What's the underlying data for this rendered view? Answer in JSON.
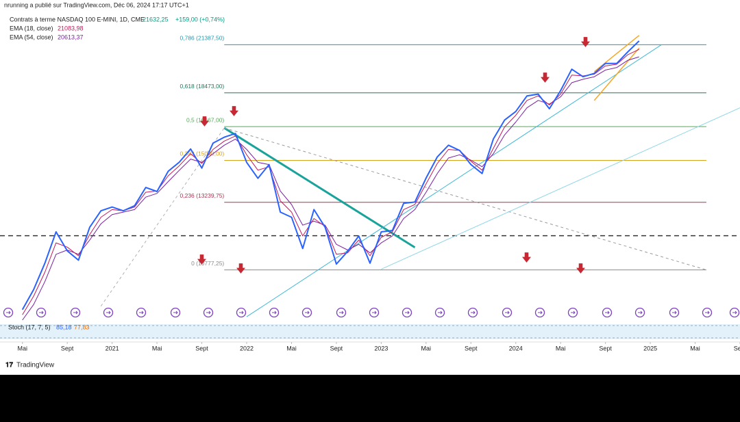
{
  "header": {
    "published": "nrunning a publié sur TradingView.com, Déc 06, 2024 17:17 UTC+1"
  },
  "footer": {
    "brand": "TradingView"
  },
  "chart_data": {
    "type": "line",
    "log_scale": true,
    "xlim": [
      "2020-03",
      "2025-09"
    ],
    "ylim": [
      9250,
      23800
    ],
    "xticks": [
      {
        "value": "2020-05",
        "label": "Mai"
      },
      {
        "value": "2020-09",
        "label": "Sept"
      },
      {
        "value": "2021-01",
        "label": "2021"
      },
      {
        "value": "2021-05",
        "label": "Mai"
      },
      {
        "value": "2021-09",
        "label": "Sept"
      },
      {
        "value": "2022-01",
        "label": "2022"
      },
      {
        "value": "2022-05",
        "label": "Mai"
      },
      {
        "value": "2022-09",
        "label": "Sept"
      },
      {
        "value": "2023-01",
        "label": "2023"
      },
      {
        "value": "2023-05",
        "label": "Mai"
      },
      {
        "value": "2023-09",
        "label": "Sept"
      },
      {
        "value": "2024-01",
        "label": "2024"
      },
      {
        "value": "2024-05",
        "label": "Mai"
      },
      {
        "value": "2024-09",
        "label": "Sept"
      },
      {
        "value": "2025-01",
        "label": "2025"
      },
      {
        "value": "2025-05",
        "label": "Mai"
      },
      {
        "value": "2025-09",
        "label": "Sept"
      }
    ],
    "x": [
      "2020-05",
      "2020-06",
      "2020-07",
      "2020-08",
      "2020-09",
      "2020-10",
      "2020-11",
      "2020-12",
      "2021-01",
      "2021-02",
      "2021-03",
      "2021-04",
      "2021-05",
      "2021-06",
      "2021-07",
      "2021-08",
      "2021-09",
      "2021-10",
      "2021-11",
      "2021-12",
      "2022-01",
      "2022-02",
      "2022-03",
      "2022-04",
      "2022-05",
      "2022-06",
      "2022-07",
      "2022-08",
      "2022-09",
      "2022-10",
      "2022-11",
      "2022-12",
      "2023-01",
      "2023-02",
      "2023-03",
      "2023-04",
      "2023-05",
      "2023-06",
      "2023-07",
      "2023-08",
      "2023-09",
      "2023-10",
      "2023-11",
      "2023-12",
      "2024-01",
      "2024-02",
      "2024-03",
      "2024-04",
      "2024-05",
      "2024-06",
      "2024-07",
      "2024-08",
      "2024-09",
      "2024-10",
      "2024-11",
      "2024-12"
    ],
    "series": [
      {
        "name": "Contrats à terme NASDAQ 100 E-MINI, 1D, CME",
        "color": "#2962ff",
        "last_label": "21632,25",
        "change_label": "+159,00 (+0,74%)",
        "values": [
          9550,
          10150,
          11000,
          12100,
          11420,
          11100,
          12270,
          12900,
          13050,
          12900,
          13100,
          13850,
          13680,
          14550,
          14960,
          15570,
          14690,
          15850,
          16140,
          16320,
          14950,
          14240,
          14850,
          12850,
          12650,
          11500,
          12950,
          12270,
          10970,
          11400,
          11950,
          11000,
          12100,
          12150,
          13200,
          13250,
          14250,
          15200,
          15750,
          15500,
          14850,
          14450,
          16050,
          17000,
          17450,
          18300,
          18400,
          17600,
          18600,
          19850,
          19400,
          19600,
          20200,
          20200,
          20930,
          21632.25
        ]
      },
      {
        "name": "EMA (18, close)",
        "color": "#c2185b",
        "last_label": "21083,98",
        "values": [
          9400,
          9950,
          10700,
          11700,
          11550,
          11250,
          12000,
          12650,
          12950,
          12900,
          13050,
          13650,
          13700,
          14350,
          14800,
          15350,
          14900,
          15550,
          15950,
          16200,
          15300,
          14600,
          14750,
          13300,
          12850,
          11950,
          12600,
          12300,
          11300,
          11350,
          11800,
          11250,
          11900,
          12100,
          12950,
          13150,
          14000,
          14900,
          15550,
          15500,
          15000,
          14600,
          15600,
          16650,
          17250,
          18050,
          18300,
          17800,
          18400,
          19500,
          19450,
          19550,
          20050,
          20150,
          20750,
          21083.98
        ]
      },
      {
        "name": "EMA (54, close)",
        "color": "#7b1fa2",
        "last_label": "20613,37",
        "values": [
          9250,
          9700,
          10400,
          11300,
          11450,
          11300,
          11800,
          12400,
          12750,
          12850,
          12950,
          13450,
          13600,
          14100,
          14600,
          15100,
          14950,
          15350,
          15750,
          16050,
          15550,
          14950,
          14850,
          13700,
          13150,
          12350,
          12500,
          12350,
          11650,
          11450,
          11650,
          11350,
          11700,
          11950,
          12600,
          12950,
          13650,
          14450,
          15150,
          15300,
          15050,
          14750,
          15350,
          16250,
          16900,
          17650,
          18050,
          17850,
          18250,
          19050,
          19250,
          19400,
          19800,
          19950,
          20400,
          20613.37
        ]
      }
    ],
    "fib_range": [
      "2021-11",
      "2025-06"
    ],
    "fib_levels": [
      {
        "value": 21387.5,
        "label": "0,786 (21387,50)",
        "color": "#1e9bb0"
      },
      {
        "value": 18473,
        "label": "0,618 (18473,00)",
        "color": "#1b7a55"
      },
      {
        "value": 16667,
        "label": "0,5 (16667,00)",
        "color": "#4caf50"
      },
      {
        "value": 15040,
        "label": "0,382 (15040,00)",
        "color": "#d6a21b"
      },
      {
        "value": 13239.75,
        "label": "0,236 (13239,75)",
        "color": "#b0304e"
      },
      {
        "value": 10777.25,
        "label": "0 (10777,25)",
        "color": "#8a8a8a"
      }
    ],
    "hline": 11960,
    "trendlines": [
      {
        "color": "#1aa39a",
        "width": 3,
        "dash": false,
        "points": [
          [
            "2021-11",
            16600
          ],
          [
            "2023-04",
            11540
          ]
        ]
      },
      {
        "color": "#9a9a9a",
        "width": 1,
        "dash": true,
        "points": [
          [
            "2021-11",
            16600
          ],
          [
            "2025-06",
            10777
          ]
        ]
      },
      {
        "color": "#b0b0b0",
        "width": 1,
        "dash": true,
        "points": [
          [
            "2020-12",
            9650
          ],
          [
            "2021-11",
            16600
          ]
        ]
      },
      {
        "color": "#3cb8d8",
        "width": 1,
        "dash": false,
        "points": [
          [
            "2022-01",
            9345
          ],
          [
            "2025-02",
            21387
          ]
        ]
      },
      {
        "color": "#8fd6e6",
        "width": 1,
        "dash": false,
        "points": [
          [
            "2023-01",
            10800
          ],
          [
            "2025-09",
            17650
          ]
        ]
      },
      {
        "color": "#f5a623",
        "width": 1.5,
        "dash": false,
        "points": [
          [
            "2024-08",
            19700
          ],
          [
            "2024-12",
            22000
          ]
        ]
      },
      {
        "color": "#f5a623",
        "width": 1.5,
        "dash": false,
        "points": [
          [
            "2024-08",
            18050
          ],
          [
            "2024-12",
            21170
          ]
        ]
      }
    ],
    "stoch": {
      "name": "Stoch (17, 7, 5)",
      "k_label": "85,18",
      "d_label": "77,83"
    }
  }
}
